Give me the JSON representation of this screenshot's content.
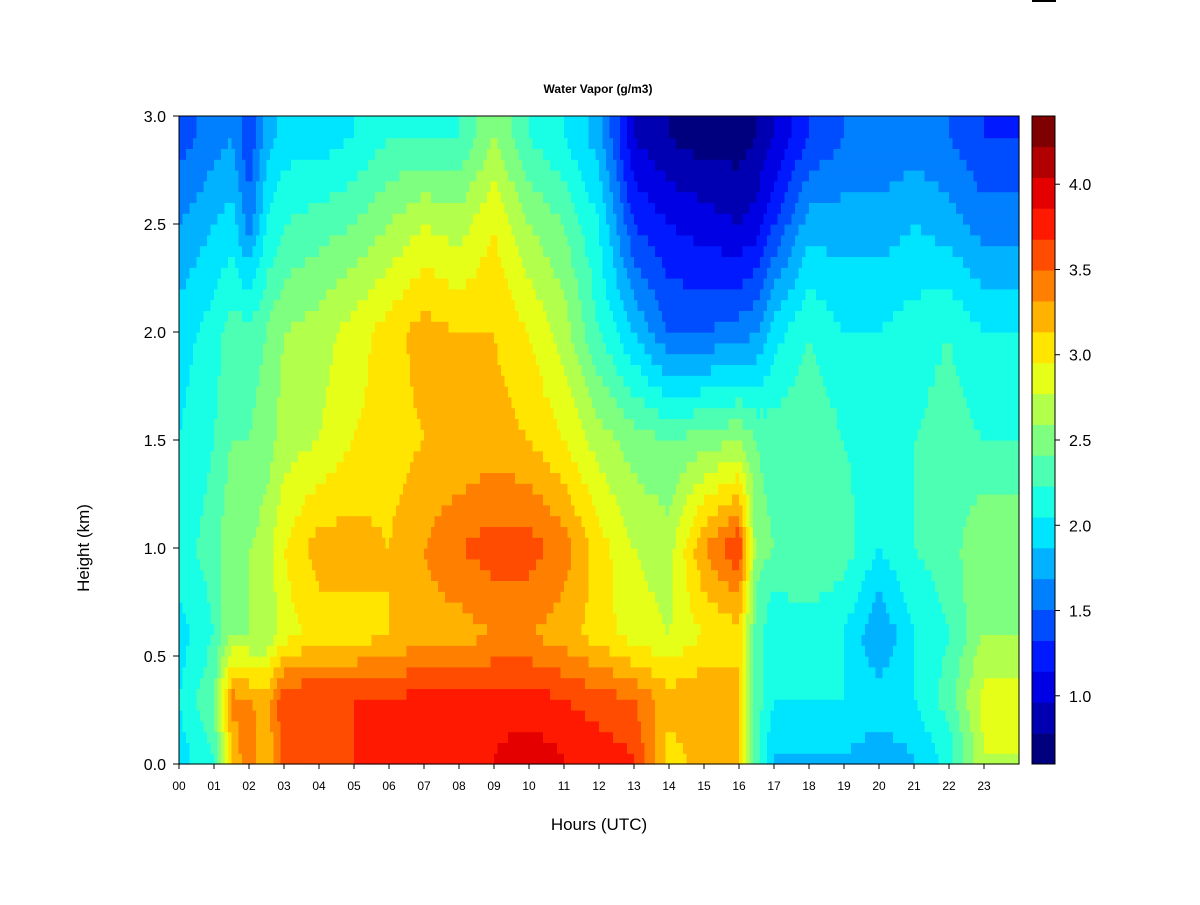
{
  "chart_data": {
    "type": "heatmap",
    "title": "Water Vapor (g/m3)",
    "xlabel": "Hours (UTC)",
    "ylabel": "Height (km)",
    "x_range": [
      0,
      24
    ],
    "ylim": [
      0,
      3.0
    ],
    "x_tick_labels": [
      "00",
      "01",
      "02",
      "03",
      "04",
      "05",
      "06",
      "07",
      "08",
      "09",
      "10",
      "11",
      "12",
      "13",
      "14",
      "15",
      "16",
      "17",
      "18",
      "19",
      "20",
      "21",
      "22",
      "23"
    ],
    "y_ticks": [
      0.0,
      0.5,
      1.0,
      1.5,
      2.0,
      2.5,
      3.0
    ],
    "y_tick_labels": [
      "0.0",
      "0.5",
      "1.0",
      "1.5",
      "2.0",
      "2.5",
      "3.0"
    ],
    "colorbar": {
      "min": 0.6,
      "max": 4.4,
      "level_step": 0.2,
      "tick_values": [
        1.0,
        1.5,
        2.0,
        2.5,
        3.0,
        3.5,
        4.0
      ],
      "tick_labels": [
        "1.0",
        "1.5",
        "2.0",
        "2.5",
        "3.0",
        "3.5",
        "4.0"
      ],
      "colors": [
        "#00007f",
        "#0000b2",
        "#0000e5",
        "#0019ff",
        "#004cff",
        "#007fff",
        "#00b2ff",
        "#00e5ff",
        "#19ffe5",
        "#4cffb2",
        "#7fff7f",
        "#b2ff4c",
        "#e5ff19",
        "#ffe500",
        "#ffb200",
        "#ff7f00",
        "#ff4c00",
        "#ff1900",
        "#e50000",
        "#b20000",
        "#7f0000"
      ]
    },
    "heights_km": [
      0.05,
      0.3,
      0.6,
      1.0,
      1.5,
      2.0,
      2.5,
      2.9
    ],
    "hours": [
      0,
      1,
      1.5,
      2,
      2.5,
      3,
      4,
      5,
      6,
      7,
      8,
      9,
      10,
      11,
      12,
      13,
      14,
      15,
      16,
      16.5,
      17,
      18,
      19,
      20,
      21,
      22,
      23,
      24
    ],
    "values": [
      [
        2.1,
        2.4,
        3.4,
        3.8,
        3.4,
        3.9,
        3.9,
        4.0,
        4.0,
        4.1,
        4.1,
        4.2,
        4.3,
        4.2,
        4.1,
        4.0,
        3.3,
        3.5,
        3.4,
        2.5,
        2.0,
        2.0,
        2.0,
        1.9,
        2.0,
        2.3,
        3.0,
        3.0
      ],
      [
        2.2,
        2.6,
        3.7,
        3.6,
        3.5,
        4.0,
        4.0,
        4.0,
        4.0,
        4.1,
        4.1,
        4.1,
        4.1,
        4.0,
        3.9,
        3.8,
        3.5,
        3.6,
        3.5,
        2.5,
        2.2,
        2.2,
        2.2,
        2.1,
        2.2,
        2.5,
        3.1,
        3.1
      ],
      [
        2.1,
        2.4,
        2.8,
        2.8,
        2.8,
        3.1,
        3.3,
        3.3,
        3.4,
        3.5,
        3.5,
        3.6,
        3.6,
        3.5,
        3.3,
        3.1,
        3.0,
        3.2,
        3.3,
        2.5,
        2.2,
        2.3,
        2.2,
        1.8,
        2.2,
        2.4,
        2.8,
        2.8
      ],
      [
        2.3,
        2.5,
        2.8,
        2.8,
        2.9,
        3.2,
        3.5,
        3.5,
        3.4,
        3.6,
        3.8,
        3.9,
        3.9,
        3.7,
        3.3,
        3.0,
        2.9,
        3.6,
        4.0,
        2.7,
        2.6,
        2.6,
        2.5,
        2.2,
        2.4,
        2.5,
        2.8,
        2.8
      ],
      [
        2.2,
        2.4,
        2.6,
        2.6,
        2.7,
        2.9,
        3.0,
        3.2,
        3.3,
        3.4,
        3.4,
        3.5,
        3.4,
        3.2,
        2.9,
        2.7,
        2.6,
        2.7,
        2.8,
        2.6,
        2.5,
        2.6,
        2.4,
        2.3,
        2.4,
        2.5,
        2.4,
        2.4
      ],
      [
        2.1,
        2.3,
        2.5,
        2.5,
        2.6,
        2.8,
        2.9,
        3.1,
        3.3,
        3.5,
        3.4,
        3.4,
        3.2,
        2.9,
        2.4,
        2.0,
        1.6,
        1.6,
        1.7,
        1.8,
        2.1,
        2.4,
        2.2,
        2.2,
        2.3,
        2.4,
        2.2,
        2.2
      ],
      [
        1.8,
        2.0,
        2.1,
        1.7,
        2.2,
        2.4,
        2.5,
        2.6,
        2.8,
        3.0,
        2.9,
        3.2,
        2.8,
        2.6,
        2.2,
        1.4,
        1.2,
        1.1,
        1.0,
        1.1,
        1.4,
        1.9,
        1.9,
        1.9,
        2.0,
        1.9,
        1.7,
        1.7
      ],
      [
        1.5,
        1.7,
        1.8,
        1.4,
        1.9,
        2.1,
        2.1,
        2.2,
        2.4,
        2.4,
        2.4,
        2.8,
        2.4,
        2.2,
        1.9,
        1.0,
        0.8,
        0.7,
        0.7,
        0.8,
        1.0,
        1.4,
        1.6,
        1.6,
        1.7,
        1.6,
        1.4,
        1.4
      ]
    ]
  }
}
